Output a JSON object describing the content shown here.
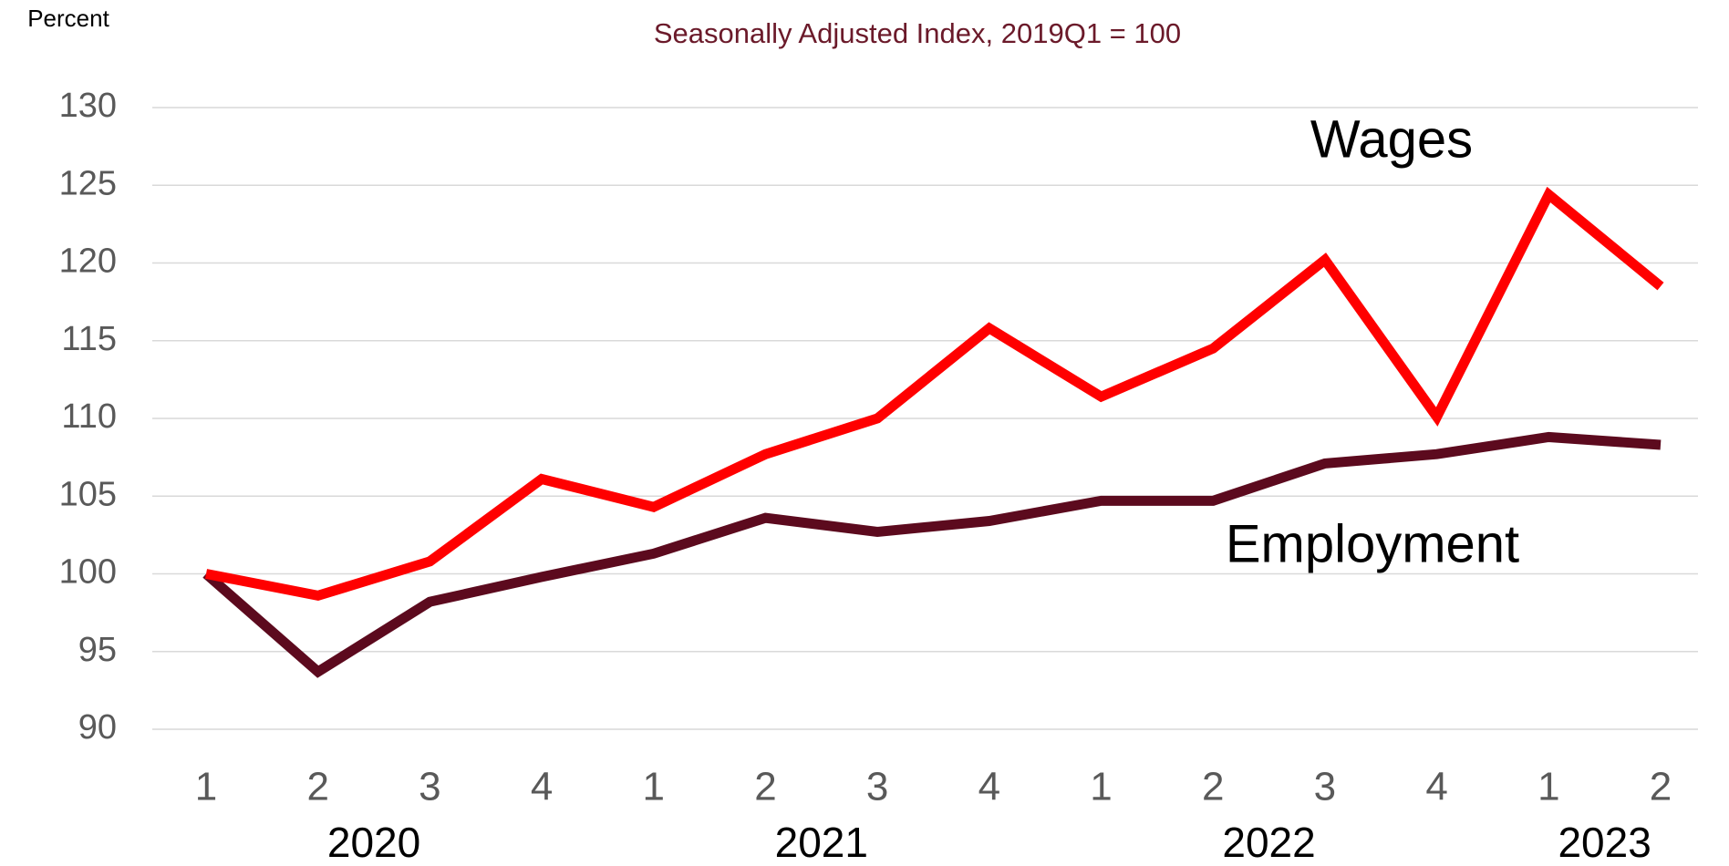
{
  "chart_data": {
    "type": "line",
    "title": "Seasonally Adjusted Index, 2019Q1 = 100",
    "y_label": "Percent",
    "category_groups": [
      {
        "label": "2020",
        "categories": [
          "1",
          "2",
          "3",
          "4"
        ]
      },
      {
        "label": "2021",
        "categories": [
          "1",
          "2",
          "3",
          "4"
        ]
      },
      {
        "label": "2022",
        "categories": [
          "1",
          "2",
          "3",
          "4"
        ]
      },
      {
        "label": "2023",
        "categories": [
          "1",
          "2"
        ]
      }
    ],
    "series": [
      {
        "name": "Wages",
        "color": "#ff0000",
        "values": [
          100,
          98.6,
          100.8,
          106.1,
          104.3,
          107.7,
          110.0,
          115.8,
          111.4,
          114.5,
          120.2,
          110.1,
          124.4,
          118.5
        ]
      },
      {
        "name": "Employment",
        "color": "#5c0a1e",
        "values": [
          100,
          93.7,
          98.2,
          99.8,
          101.3,
          103.6,
          102.7,
          103.4,
          104.7,
          104.7,
          107.1,
          107.7,
          108.8,
          108.3
        ]
      }
    ],
    "ylim": [
      90,
      130
    ],
    "yticks": [
      90,
      95,
      100,
      105,
      110,
      115,
      120,
      125,
      130
    ],
    "grid": true
  }
}
